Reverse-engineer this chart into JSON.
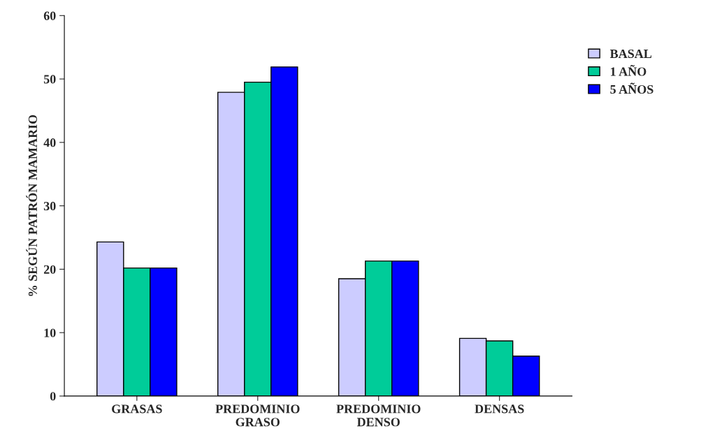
{
  "chart_data": {
    "type": "bar",
    "ylabel": "% SEGÚN PATRÓN MAMARIO",
    "categories": [
      "GRASAS",
      "PREDOMINIO\nGRASO",
      "PREDOMINIO\nDENSO",
      "DENSAS"
    ],
    "series": [
      {
        "name": "BASAL",
        "color": "#ccccff",
        "values": [
          24.3,
          47.9,
          18.5,
          9.1
        ]
      },
      {
        "name": "1 AÑO",
        "color": "#00cc99",
        "values": [
          20.2,
          49.5,
          21.3,
          8.7
        ]
      },
      {
        "name": "5 AÑOS",
        "color": "#0000ff",
        "values": [
          20.2,
          51.9,
          21.3,
          6.3
        ]
      }
    ],
    "ylim": [
      0,
      60
    ],
    "yticks": [
      0,
      10,
      20,
      30,
      40,
      50,
      60
    ],
    "grid": false,
    "legend": "right"
  }
}
